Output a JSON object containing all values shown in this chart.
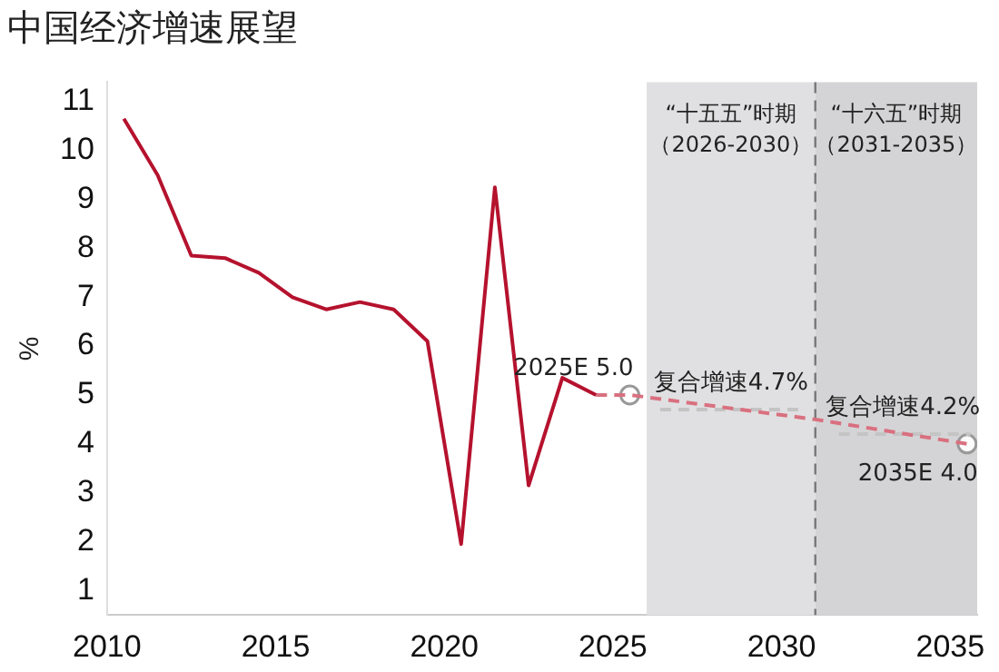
{
  "chart_data": {
    "type": "line",
    "title": "中国经济增速展望",
    "ylabel": "%",
    "xlim": [
      2010,
      2035.8
    ],
    "xticks": [
      2010,
      2015,
      2020,
      2025,
      2030,
      2035
    ],
    "ylim": [
      0.5,
      11.4
    ],
    "yticks": [
      1,
      2,
      3,
      4,
      5,
      6,
      7,
      8,
      9,
      10,
      11
    ],
    "grid": false,
    "legend": false,
    "series": [
      {
        "color": "#b5122e",
        "line_style": "solid",
        "marker": "none",
        "x": [
          2010.5,
          2011.5,
          2012.5,
          2013.5,
          2014.5,
          2015.5,
          2016.5,
          2017.5,
          2018.5,
          2019.5,
          2020.5,
          2021.5,
          2022.5,
          2023.5,
          2024.5
        ],
        "values": [
          10.65,
          9.5,
          7.85,
          7.8,
          7.5,
          7.0,
          6.75,
          6.9,
          6.75,
          6.1,
          1.95,
          9.25,
          3.15,
          5.35,
          5.0
        ]
      },
      {
        "color": "#d9707f",
        "line_style": "dashed",
        "marker": "none",
        "x": [
          2024.5,
          2025.5,
          2031,
          2035.5
        ],
        "values": [
          5.0,
          5.0,
          4.5,
          4.0
        ]
      },
      {
        "color": "#c4c4c4",
        "line_style": "dashed",
        "marker": "none",
        "x": [
          2026.4,
          2030.6
        ],
        "values": [
          4.7,
          4.7
        ]
      },
      {
        "color": "#c4c4c4",
        "line_style": "dashed",
        "marker": "none",
        "x": [
          2031.7,
          2035.6
        ],
        "values": [
          4.2,
          4.2
        ]
      },
      {
        "type": "scatter",
        "color": "#999999",
        "marker": "circle",
        "x": [
          2025.5,
          2035.5
        ],
        "values": [
          5.0,
          4.0
        ]
      }
    ],
    "bands": [
      {
        "axis": "x",
        "from": 2026,
        "to": 2031,
        "label": "“十五五”时期（2026-2030）",
        "color": "#e0e0e2"
      },
      {
        "axis": "x",
        "from": 2031,
        "to": 2035.8,
        "label": "“十六五”时期（2031-2035）",
        "color": "#d4d4d6"
      }
    ],
    "ref_lines": [
      {
        "axis": "x",
        "value": 2031,
        "color": "#777777",
        "line_style": "dashed"
      }
    ],
    "annotations": [
      {
        "text": "2025E 5.0",
        "x": 2025.5,
        "y": 5.0
      },
      {
        "text": "复合增速4.7%",
        "x": 2028.5,
        "y": 4.7
      },
      {
        "text": "复合增速4.2%",
        "x": 2033.6,
        "y": 4.2
      },
      {
        "text": "2035E 4.0",
        "x": 2035.5,
        "y": 4.0
      }
    ]
  }
}
